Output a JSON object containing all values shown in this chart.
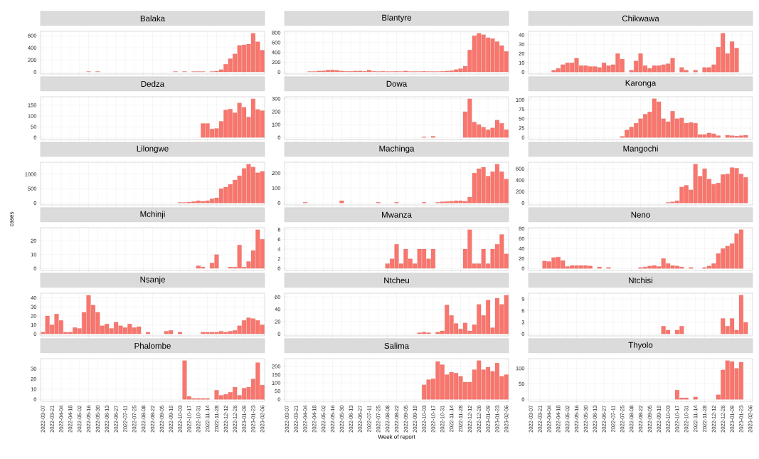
{
  "chart_data": [
    {
      "type": "bar",
      "title": "Balaka",
      "tick_labels": "y",
      "grid": true,
      "color": "#f8766d",
      "ylim": [
        -32,
        672
      ],
      "yticks": [
        0,
        200,
        400,
        600
      ],
      "categories": [
        "2022-03-07",
        null,
        "2022-03-21",
        null,
        "2022-04-04",
        null,
        "2022-04-18",
        null,
        "2022-05-02",
        null,
        "2022-05-16",
        null,
        "2022-05-30",
        null,
        "2022-06-13",
        null,
        "2022-06-27",
        null,
        "2022-07-11",
        null,
        "2022-07-25",
        null,
        "2022-08-08",
        null,
        "2022-08-22",
        null,
        "2022-09-05",
        null,
        "2022-09-19",
        null,
        "2022-10-03",
        null,
        "2022-10-17",
        null,
        "2022-10-31",
        null,
        "2022-11-14",
        null,
        "2022-11-28",
        null,
        "2022-12-12",
        null,
        "2022-12-26",
        null,
        "2023-01-09",
        null,
        "2023-01-23",
        null,
        "2023-02-06"
      ],
      "values": [
        null,
        null,
        null,
        null,
        null,
        null,
        null,
        null,
        null,
        null,
        10,
        null,
        10,
        null,
        null,
        null,
        null,
        null,
        null,
        null,
        null,
        null,
        null,
        null,
        null,
        null,
        null,
        null,
        null,
        10,
        null,
        10,
        null,
        10,
        10,
        10,
        null,
        10,
        15,
        40,
        130,
        220,
        300,
        440,
        450,
        460,
        640,
        500,
        360
      ]
    },
    {
      "type": "bar",
      "title": "Blantyre",
      "tick_labels": "y",
      "grid": true,
      "color": "#f8766d",
      "ylim": [
        -40,
        830
      ],
      "yticks": [
        0,
        200,
        400,
        600,
        800
      ],
      "categories": [
        "2022-03-07",
        null,
        "2022-03-21",
        null,
        "2022-04-04",
        null,
        "2022-04-18",
        null,
        "2022-05-02",
        null,
        "2022-05-16",
        null,
        "2022-05-30",
        null,
        "2022-06-13",
        null,
        "2022-06-27",
        null,
        "2022-07-11",
        null,
        "2022-07-25",
        null,
        "2022-08-08",
        null,
        "2022-08-22",
        null,
        "2022-09-05",
        null,
        "2022-09-19",
        null,
        "2022-10-03",
        null,
        "2022-10-17",
        null,
        "2022-10-31",
        null,
        "2022-11-14",
        null,
        "2022-11-28",
        null,
        "2022-12-12",
        null,
        "2022-12-26",
        null,
        "2023-01-09",
        null,
        "2023-01-23",
        null,
        "2023-02-06"
      ],
      "values": [
        null,
        null,
        null,
        null,
        null,
        10,
        10,
        20,
        25,
        40,
        45,
        35,
        20,
        15,
        15,
        20,
        20,
        15,
        40,
        15,
        10,
        15,
        10,
        10,
        15,
        10,
        20,
        10,
        10,
        10,
        15,
        10,
        10,
        10,
        15,
        20,
        30,
        50,
        70,
        120,
        450,
        740,
        790,
        760,
        700,
        680,
        620,
        540,
        420
      ]
    },
    {
      "type": "bar",
      "title": "Chikwawa",
      "tick_labels": "y",
      "grid": true,
      "color": "#f8766d",
      "ylim": [
        -2.1,
        44.1
      ],
      "yticks": [
        0,
        10,
        20,
        30,
        40
      ],
      "categories": [
        "2022-03-07",
        null,
        "2022-03-21",
        null,
        "2022-04-04",
        null,
        "2022-04-18",
        null,
        "2022-05-02",
        null,
        "2022-05-16",
        null,
        "2022-05-30",
        null,
        "2022-06-13",
        null,
        "2022-06-27",
        null,
        "2022-07-11",
        null,
        "2022-07-25",
        null,
        "2022-08-08",
        null,
        "2022-08-22",
        null,
        "2022-09-05",
        null,
        "2022-09-19",
        null,
        "2022-10-03",
        null,
        "2022-10-17",
        null,
        "2022-10-31",
        null,
        "2022-11-14",
        null,
        "2022-11-28",
        null,
        "2022-12-12",
        null,
        "2022-12-26",
        null,
        "2023-01-09",
        null,
        "2023-01-23",
        null,
        "2023-02-06"
      ],
      "values": [
        null,
        null,
        null,
        null,
        null,
        2,
        4,
        8,
        10,
        10,
        15,
        7,
        7,
        6,
        6,
        5,
        10,
        7,
        8,
        20,
        14,
        null,
        2,
        12,
        20,
        7,
        4,
        7,
        7,
        8,
        9,
        15,
        null,
        5,
        2,
        null,
        2,
        null,
        5,
        5,
        8,
        27,
        42,
        20,
        33,
        26,
        null,
        null,
        null
      ]
    },
    {
      "type": "bar",
      "title": "Dedza",
      "tick_labels": "y",
      "grid": true,
      "color": "#f8766d",
      "ylim": [
        -9,
        189
      ],
      "yticks": [
        0,
        50,
        100,
        150
      ],
      "categories": [
        "2022-03-07",
        null,
        "2022-03-21",
        null,
        "2022-04-04",
        null,
        "2022-04-18",
        null,
        "2022-05-02",
        null,
        "2022-05-16",
        null,
        "2022-05-30",
        null,
        "2022-06-13",
        null,
        "2022-06-27",
        null,
        "2022-07-11",
        null,
        "2022-07-25",
        null,
        "2022-08-08",
        null,
        "2022-08-22",
        null,
        "2022-09-05",
        null,
        "2022-09-19",
        null,
        "2022-10-03",
        null,
        "2022-10-17",
        null,
        "2022-10-31",
        null,
        "2022-11-14",
        null,
        "2022-11-28",
        null,
        "2022-12-12",
        null,
        "2022-12-26",
        null,
        "2023-01-09",
        null,
        "2023-01-23",
        null,
        "2023-02-06"
      ],
      "values": [
        null,
        null,
        null,
        null,
        null,
        null,
        null,
        null,
        null,
        null,
        null,
        null,
        null,
        null,
        null,
        null,
        null,
        null,
        null,
        null,
        null,
        null,
        null,
        null,
        null,
        null,
        null,
        null,
        null,
        null,
        null,
        null,
        null,
        null,
        null,
        65,
        65,
        40,
        42,
        75,
        128,
        132,
        115,
        160,
        140,
        95,
        180,
        130,
        125
      ]
    },
    {
      "type": "bar",
      "title": "Dowa",
      "tick_labels": "y",
      "grid": true,
      "color": "#f8766d",
      "ylim": [
        -15,
        315
      ],
      "yticks": [
        0,
        100,
        200,
        300
      ],
      "categories": [
        "2022-03-07",
        null,
        "2022-03-21",
        null,
        "2022-04-04",
        null,
        "2022-04-18",
        null,
        "2022-05-02",
        null,
        "2022-05-16",
        null,
        "2022-05-30",
        null,
        "2022-06-13",
        null,
        "2022-06-27",
        null,
        "2022-07-11",
        null,
        "2022-07-25",
        null,
        "2022-08-08",
        null,
        "2022-08-22",
        null,
        "2022-09-05",
        null,
        "2022-09-19",
        null,
        "2022-10-03",
        null,
        "2022-10-17",
        null,
        "2022-10-31",
        null,
        "2022-11-14",
        null,
        "2022-11-28",
        null,
        "2022-12-12",
        null,
        "2022-12-26",
        null,
        "2023-01-09",
        null,
        "2023-01-23",
        null,
        "2023-02-06"
      ],
      "values": [
        null,
        null,
        null,
        null,
        null,
        null,
        null,
        null,
        null,
        null,
        null,
        null,
        null,
        null,
        null,
        null,
        null,
        null,
        null,
        null,
        null,
        null,
        null,
        null,
        null,
        null,
        null,
        null,
        null,
        null,
        5,
        null,
        10,
        null,
        null,
        null,
        null,
        null,
        null,
        200,
        300,
        120,
        100,
        80,
        60,
        75,
        135,
        110,
        60
      ]
    },
    {
      "type": "bar",
      "title": "Karonga",
      "tick_labels": "y",
      "grid": true,
      "color": "#f8766d",
      "ylim": [
        -5.2,
        108.2
      ],
      "yticks": [
        0,
        25,
        50,
        75,
        100
      ],
      "categories": [
        "2022-03-07",
        null,
        "2022-03-21",
        null,
        "2022-04-04",
        null,
        "2022-04-18",
        null,
        "2022-05-02",
        null,
        "2022-05-16",
        null,
        "2022-05-30",
        null,
        "2022-06-13",
        null,
        "2022-06-27",
        null,
        "2022-07-11",
        null,
        "2022-07-25",
        null,
        "2022-08-08",
        null,
        "2022-08-22",
        null,
        "2022-09-05",
        null,
        "2022-09-19",
        null,
        "2022-10-03",
        null,
        "2022-10-17",
        null,
        "2022-10-31",
        null,
        "2022-11-14",
        null,
        "2022-11-28",
        null,
        "2022-12-12",
        null,
        "2022-12-26",
        null,
        "2023-01-09",
        null,
        "2023-01-23",
        null,
        "2023-02-06"
      ],
      "values": [
        null,
        null,
        null,
        null,
        null,
        null,
        null,
        null,
        null,
        null,
        null,
        null,
        null,
        null,
        null,
        null,
        null,
        null,
        null,
        null,
        3,
        20,
        28,
        38,
        50,
        62,
        68,
        103,
        95,
        50,
        42,
        70,
        50,
        52,
        38,
        40,
        38,
        8,
        8,
        12,
        10,
        5,
        null,
        6,
        5,
        4,
        5,
        6,
        null
      ]
    },
    {
      "type": "bar",
      "title": "Lilongwe",
      "tick_labels": "y",
      "grid": true,
      "color": "#f8766d",
      "ylim": [
        -68,
        1418
      ],
      "yticks": [
        0,
        500,
        1000
      ],
      "categories": [
        "2022-03-07",
        null,
        "2022-03-21",
        null,
        "2022-04-04",
        null,
        "2022-04-18",
        null,
        "2022-05-02",
        null,
        "2022-05-16",
        null,
        "2022-05-30",
        null,
        "2022-06-13",
        null,
        "2022-06-27",
        null,
        "2022-07-11",
        null,
        "2022-07-25",
        null,
        "2022-08-08",
        null,
        "2022-08-22",
        null,
        "2022-09-05",
        null,
        "2022-09-19",
        null,
        "2022-10-03",
        null,
        "2022-10-17",
        null,
        "2022-10-31",
        null,
        "2022-11-14",
        null,
        "2022-11-28",
        null,
        "2022-12-12",
        null,
        "2022-12-26",
        null,
        "2023-01-09",
        null,
        "2023-01-23",
        null,
        "2023-02-06"
      ],
      "values": [
        null,
        null,
        null,
        null,
        null,
        null,
        null,
        null,
        null,
        null,
        null,
        null,
        null,
        null,
        null,
        null,
        null,
        null,
        null,
        null,
        null,
        null,
        null,
        null,
        null,
        null,
        null,
        null,
        null,
        null,
        20,
        20,
        30,
        50,
        80,
        60,
        80,
        150,
        180,
        500,
        550,
        650,
        800,
        950,
        1200,
        1350,
        1250,
        1050,
        1100
      ]
    },
    {
      "type": "bar",
      "title": "Machinga",
      "tick_labels": "y",
      "grid": true,
      "color": "#f8766d",
      "ylim": [
        -13,
        273
      ],
      "yticks": [
        0,
        100,
        200
      ],
      "categories": [
        "2022-03-07",
        null,
        "2022-03-21",
        null,
        "2022-04-04",
        null,
        "2022-04-18",
        null,
        "2022-05-02",
        null,
        "2022-05-16",
        null,
        "2022-05-30",
        null,
        "2022-06-13",
        null,
        "2022-06-27",
        null,
        "2022-07-11",
        null,
        "2022-07-25",
        null,
        "2022-08-08",
        null,
        "2022-08-22",
        null,
        "2022-09-05",
        null,
        "2022-09-19",
        null,
        "2022-10-03",
        null,
        "2022-10-17",
        null,
        "2022-10-31",
        null,
        "2022-11-14",
        null,
        "2022-11-28",
        null,
        "2022-12-12",
        null,
        "2022-12-26",
        null,
        "2023-01-09",
        null,
        "2023-01-23",
        null,
        "2023-02-06"
      ],
      "values": [
        null,
        null,
        null,
        null,
        5,
        null,
        null,
        null,
        null,
        null,
        null,
        null,
        15,
        null,
        null,
        null,
        null,
        null,
        null,
        null,
        5,
        null,
        null,
        null,
        5,
        null,
        null,
        null,
        null,
        null,
        5,
        null,
        null,
        5,
        8,
        10,
        12,
        15,
        15,
        12,
        40,
        200,
        230,
        240,
        180,
        210,
        260,
        210,
        160
      ]
    },
    {
      "type": "bar",
      "title": "Mangochi",
      "tick_labels": "y",
      "grid": true,
      "color": "#f8766d",
      "ylim": [
        -34,
        714
      ],
      "yticks": [
        0,
        200,
        400,
        600
      ],
      "categories": [
        "2022-03-07",
        null,
        "2022-03-21",
        null,
        "2022-04-04",
        null,
        "2022-04-18",
        null,
        "2022-05-02",
        null,
        "2022-05-16",
        null,
        "2022-05-30",
        null,
        "2022-06-13",
        null,
        "2022-06-27",
        null,
        "2022-07-11",
        null,
        "2022-07-25",
        null,
        "2022-08-08",
        null,
        "2022-08-22",
        null,
        "2022-09-05",
        null,
        "2022-09-19",
        null,
        "2022-10-03",
        null,
        "2022-10-17",
        null,
        "2022-10-31",
        null,
        "2022-11-14",
        null,
        "2022-11-28",
        null,
        "2022-12-12",
        null,
        "2022-12-26",
        null,
        "2023-01-09",
        null,
        "2023-01-23",
        null,
        "2023-02-06"
      ],
      "values": [
        null,
        null,
        null,
        null,
        null,
        null,
        null,
        null,
        null,
        null,
        null,
        null,
        null,
        null,
        null,
        null,
        null,
        null,
        null,
        null,
        null,
        null,
        null,
        null,
        null,
        null,
        null,
        null,
        null,
        null,
        10,
        20,
        40,
        280,
        310,
        230,
        680,
        470,
        600,
        420,
        330,
        350,
        500,
        510,
        620,
        610,
        510,
        450,
        null
      ]
    },
    {
      "type": "bar",
      "title": "Mchinji",
      "ylabel": "cases",
      "tick_labels": "y",
      "grid": true,
      "color": "#f8766d",
      "ylim": [
        -1.4,
        29.4
      ],
      "yticks": [
        0,
        10,
        20
      ],
      "categories": [
        "2022-03-07",
        null,
        "2022-03-21",
        null,
        "2022-04-04",
        null,
        "2022-04-18",
        null,
        "2022-05-02",
        null,
        "2022-05-16",
        null,
        "2022-05-30",
        null,
        "2022-06-13",
        null,
        "2022-06-27",
        null,
        "2022-07-11",
        null,
        "2022-07-25",
        null,
        "2022-08-08",
        null,
        "2022-08-22",
        null,
        "2022-09-05",
        null,
        "2022-09-19",
        null,
        "2022-10-03",
        null,
        "2022-10-17",
        null,
        "2022-10-31",
        null,
        "2022-11-14",
        null,
        "2022-11-28",
        null,
        "2022-12-12",
        null,
        "2022-12-26",
        null,
        "2023-01-09",
        null,
        "2023-01-23",
        null,
        "2023-02-06"
      ],
      "values": [
        null,
        null,
        null,
        null,
        null,
        null,
        null,
        null,
        null,
        null,
        null,
        null,
        null,
        null,
        null,
        null,
        null,
        null,
        null,
        null,
        null,
        null,
        null,
        null,
        null,
        null,
        null,
        null,
        null,
        null,
        null,
        null,
        null,
        null,
        2,
        1,
        null,
        4,
        10,
        null,
        null,
        1,
        1,
        17,
        1,
        5,
        13,
        28,
        21
      ]
    },
    {
      "type": "bar",
      "title": "Mwanza",
      "tick_labels": "y",
      "grid": true,
      "color": "#f8766d",
      "ylim": [
        -0.4,
        8.4
      ],
      "yticks": [
        0,
        2,
        4,
        6,
        8
      ],
      "categories": [
        "2022-03-07",
        null,
        "2022-03-21",
        null,
        "2022-04-04",
        null,
        "2022-04-18",
        null,
        "2022-05-02",
        null,
        "2022-05-16",
        null,
        "2022-05-30",
        null,
        "2022-06-13",
        null,
        "2022-06-27",
        null,
        "2022-07-11",
        null,
        "2022-07-25",
        null,
        "2022-08-08",
        null,
        "2022-08-22",
        null,
        "2022-09-05",
        null,
        "2022-09-19",
        null,
        "2022-10-03",
        null,
        "2022-10-17",
        null,
        "2022-10-31",
        null,
        "2022-11-14",
        null,
        "2022-11-28",
        null,
        "2022-12-12",
        null,
        "2022-12-26",
        null,
        "2023-01-09",
        null,
        "2023-01-23",
        null,
        "2023-02-06"
      ],
      "values": [
        null,
        null,
        null,
        null,
        null,
        null,
        null,
        null,
        null,
        null,
        null,
        null,
        null,
        null,
        null,
        null,
        null,
        null,
        null,
        null,
        null,
        null,
        1,
        2,
        5,
        1,
        4,
        2,
        1,
        4,
        4,
        2,
        4,
        null,
        null,
        null,
        null,
        null,
        null,
        4,
        8,
        1,
        1,
        4,
        1,
        4,
        5,
        7,
        3
      ]
    },
    {
      "type": "bar",
      "title": "Neno",
      "tick_labels": "y",
      "grid": true,
      "color": "#f8766d",
      "ylim": [
        -3.9,
        81.9
      ],
      "yticks": [
        0,
        20,
        40,
        60,
        80
      ],
      "categories": [
        "2022-03-07",
        null,
        "2022-03-21",
        null,
        "2022-04-04",
        null,
        "2022-04-18",
        null,
        "2022-05-02",
        null,
        "2022-05-16",
        null,
        "2022-05-30",
        null,
        "2022-06-13",
        null,
        "2022-06-27",
        null,
        "2022-07-11",
        null,
        "2022-07-25",
        null,
        "2022-08-08",
        null,
        "2022-08-22",
        null,
        "2022-09-05",
        null,
        "2022-09-19",
        null,
        "2022-10-03",
        null,
        "2022-10-17",
        null,
        "2022-10-31",
        null,
        "2022-11-14",
        null,
        "2022-11-28",
        null,
        "2022-12-12",
        null,
        "2022-12-26",
        null,
        "2023-01-09",
        null,
        "2023-01-23",
        null,
        "2023-02-06"
      ],
      "values": [
        null,
        null,
        null,
        15,
        14,
        22,
        23,
        16,
        4,
        6,
        6,
        6,
        6,
        5,
        null,
        3,
        null,
        2,
        null,
        null,
        null,
        null,
        null,
        null,
        2,
        3,
        5,
        6,
        4,
        20,
        10,
        6,
        5,
        3,
        null,
        2,
        null,
        null,
        2,
        5,
        10,
        30,
        40,
        45,
        50,
        70,
        78,
        null,
        null
      ]
    },
    {
      "type": "bar",
      "title": "Nsanje",
      "tick_labels": "y",
      "grid": true,
      "color": "#f8766d",
      "ylim": [
        -2.2,
        45.2
      ],
      "yticks": [
        0,
        10,
        20,
        30,
        40
      ],
      "categories": [
        "2022-03-07",
        null,
        "2022-03-21",
        null,
        "2022-04-04",
        null,
        "2022-04-18",
        null,
        "2022-05-02",
        null,
        "2022-05-16",
        null,
        "2022-05-30",
        null,
        "2022-06-13",
        null,
        "2022-06-27",
        null,
        "2022-07-11",
        null,
        "2022-07-25",
        null,
        "2022-08-08",
        null,
        "2022-08-22",
        null,
        "2022-09-05",
        null,
        "2022-09-19",
        null,
        "2022-10-03",
        null,
        "2022-10-17",
        null,
        "2022-10-31",
        null,
        "2022-11-14",
        null,
        "2022-11-28",
        null,
        "2022-12-12",
        null,
        "2022-12-26",
        null,
        "2023-01-09",
        null,
        "2023-01-23",
        null,
        "2023-02-06"
      ],
      "values": [
        2,
        20,
        10,
        22,
        15,
        2,
        2,
        7,
        6,
        24,
        43,
        32,
        24,
        9,
        11,
        6,
        13,
        9,
        7,
        11,
        7,
        8,
        null,
        2,
        null,
        null,
        null,
        3,
        4,
        null,
        2,
        null,
        null,
        null,
        null,
        2,
        2,
        2,
        2,
        3,
        2,
        3,
        4,
        9,
        15,
        18,
        17,
        15,
        10
      ]
    },
    {
      "type": "bar",
      "title": "Ntcheu",
      "tick_labels": "y",
      "grid": true,
      "color": "#f8766d",
      "ylim": [
        -3.2,
        66.2
      ],
      "yticks": [
        0,
        20,
        40,
        60
      ],
      "categories": [
        "2022-03-07",
        null,
        "2022-03-21",
        null,
        "2022-04-04",
        null,
        "2022-04-18",
        null,
        "2022-05-02",
        null,
        "2022-05-16",
        null,
        "2022-05-30",
        null,
        "2022-06-13",
        null,
        "2022-06-27",
        null,
        "2022-07-11",
        null,
        "2022-07-25",
        null,
        "2022-08-08",
        null,
        "2022-08-22",
        null,
        "2022-09-05",
        null,
        "2022-09-19",
        null,
        "2022-10-03",
        null,
        "2022-10-17",
        null,
        "2022-10-31",
        null,
        "2022-11-14",
        null,
        "2022-11-28",
        null,
        "2022-12-12",
        null,
        "2022-12-26",
        null,
        "2023-01-09",
        null,
        "2023-01-23",
        null,
        "2023-02-06"
      ],
      "values": [
        null,
        null,
        null,
        null,
        null,
        null,
        null,
        null,
        null,
        null,
        null,
        null,
        null,
        null,
        null,
        null,
        null,
        null,
        null,
        null,
        null,
        null,
        null,
        null,
        null,
        null,
        null,
        null,
        null,
        2,
        3,
        2,
        null,
        3,
        5,
        47,
        30,
        17,
        8,
        18,
        5,
        15,
        48,
        30,
        55,
        10,
        58,
        48,
        63
      ]
    },
    {
      "type": "bar",
      "title": "Ntchisi",
      "tick_labels": "y",
      "grid": true,
      "color": "#f8766d",
      "ylim": [
        -0.5,
        10.5
      ],
      "yticks": [
        0,
        3,
        6,
        9
      ],
      "categories": [
        "2022-03-07",
        null,
        "2022-03-21",
        null,
        "2022-04-04",
        null,
        "2022-04-18",
        null,
        "2022-05-02",
        null,
        "2022-05-16",
        null,
        "2022-05-30",
        null,
        "2022-06-13",
        null,
        "2022-06-27",
        null,
        "2022-07-11",
        null,
        "2022-07-25",
        null,
        "2022-08-08",
        null,
        "2022-08-22",
        null,
        "2022-09-05",
        null,
        "2022-09-19",
        null,
        "2022-10-03",
        null,
        "2022-10-17",
        null,
        "2022-10-31",
        null,
        "2022-11-14",
        null,
        "2022-11-28",
        null,
        "2022-12-12",
        null,
        "2022-12-26",
        null,
        "2023-01-09",
        null,
        "2023-01-23",
        null,
        "2023-02-06"
      ],
      "values": [
        null,
        null,
        null,
        null,
        null,
        null,
        null,
        null,
        null,
        null,
        null,
        null,
        null,
        null,
        null,
        null,
        null,
        null,
        null,
        null,
        null,
        null,
        null,
        null,
        null,
        null,
        null,
        null,
        null,
        2,
        1,
        null,
        1,
        2,
        null,
        null,
        null,
        null,
        null,
        null,
        null,
        null,
        4,
        2,
        4,
        1,
        10,
        3,
        null
      ]
    },
    {
      "type": "bar",
      "title": "Phalombe",
      "grid": true,
      "color": "#f8766d",
      "ylim": [
        -1.9,
        39.9
      ],
      "yticks": [
        0,
        10,
        20,
        30
      ],
      "categories": [
        "2022-03-07",
        null,
        "2022-03-21",
        null,
        "2022-04-04",
        null,
        "2022-04-18",
        null,
        "2022-05-02",
        null,
        "2022-05-16",
        null,
        "2022-05-30",
        null,
        "2022-06-13",
        null,
        "2022-06-27",
        null,
        "2022-07-11",
        null,
        "2022-07-25",
        null,
        "2022-08-08",
        null,
        "2022-08-22",
        null,
        "2022-09-05",
        null,
        "2022-09-19",
        null,
        "2022-10-03",
        null,
        "2022-10-17",
        null,
        "2022-10-31",
        null,
        "2022-11-14",
        null,
        "2022-11-28",
        null,
        "2022-12-12",
        null,
        "2022-12-26",
        null,
        "2023-01-09",
        null,
        "2023-01-23",
        null,
        "2023-02-06"
      ],
      "values": [
        null,
        null,
        null,
        null,
        null,
        null,
        null,
        null,
        null,
        null,
        null,
        null,
        null,
        null,
        null,
        null,
        null,
        null,
        null,
        null,
        null,
        null,
        null,
        null,
        null,
        null,
        null,
        null,
        null,
        null,
        null,
        38,
        3,
        1,
        1,
        1,
        1,
        null,
        9,
        4,
        5,
        7,
        12,
        4,
        11,
        12,
        20,
        36,
        14
      ]
    },
    {
      "type": "bar",
      "title": "Salima",
      "xlabel": "Week of report",
      "grid": true,
      "color": "#f8766d",
      "ylim": [
        -12,
        247
      ],
      "yticks": [
        0,
        50,
        100,
        150,
        200
      ],
      "categories": [
        "2022-03-07",
        null,
        "2022-03-21",
        null,
        "2022-04-04",
        null,
        "2022-04-18",
        null,
        "2022-05-02",
        null,
        "2022-05-16",
        null,
        "2022-05-30",
        null,
        "2022-06-13",
        null,
        "2022-06-27",
        null,
        "2022-07-11",
        null,
        "2022-07-25",
        null,
        "2022-08-08",
        null,
        "2022-08-22",
        null,
        "2022-09-05",
        null,
        "2022-09-19",
        null,
        "2022-10-03",
        null,
        "2022-10-17",
        null,
        "2022-10-31",
        null,
        "2022-11-14",
        null,
        "2022-11-28",
        null,
        "2022-12-12",
        null,
        "2022-12-26",
        null,
        "2023-01-09",
        null,
        "2023-01-23",
        null,
        "2023-02-06"
      ],
      "values": [
        null,
        null,
        null,
        null,
        null,
        null,
        null,
        null,
        null,
        null,
        null,
        null,
        null,
        null,
        null,
        null,
        null,
        null,
        null,
        null,
        null,
        null,
        null,
        null,
        null,
        null,
        null,
        null,
        null,
        null,
        88,
        120,
        125,
        230,
        210,
        150,
        165,
        160,
        140,
        105,
        105,
        180,
        235,
        180,
        195,
        170,
        220,
        140,
        150
      ]
    },
    {
      "type": "bar",
      "title": "Thyolo",
      "grid": true,
      "color": "#f8766d",
      "ylim": [
        -6.3,
        131.3
      ],
      "yticks": [
        0,
        50,
        100
      ],
      "categories": [
        "2022-03-07",
        null,
        "2022-03-21",
        null,
        "2022-04-04",
        null,
        "2022-04-18",
        null,
        "2022-05-02",
        null,
        "2022-05-16",
        null,
        "2022-05-30",
        null,
        "2022-06-13",
        null,
        "2022-06-27",
        null,
        "2022-07-11",
        null,
        "2022-07-25",
        null,
        "2022-08-08",
        null,
        "2022-08-22",
        null,
        "2022-09-05",
        null,
        "2022-09-19",
        null,
        "2022-10-03",
        null,
        "2022-10-17",
        null,
        "2022-10-31",
        null,
        "2022-11-14",
        null,
        "2022-11-28",
        null,
        "2022-12-12",
        null,
        "2022-12-26",
        null,
        "2023-01-09",
        null,
        "2023-01-23",
        null,
        "2023-02-06"
      ],
      "values": [
        null,
        null,
        null,
        null,
        null,
        null,
        null,
        null,
        null,
        null,
        null,
        null,
        null,
        null,
        null,
        null,
        null,
        null,
        null,
        null,
        null,
        null,
        null,
        null,
        null,
        null,
        null,
        null,
        null,
        null,
        null,
        null,
        30,
        5,
        5,
        null,
        8,
        null,
        null,
        null,
        null,
        15,
        95,
        125,
        122,
        100,
        120,
        null,
        null
      ]
    }
  ]
}
